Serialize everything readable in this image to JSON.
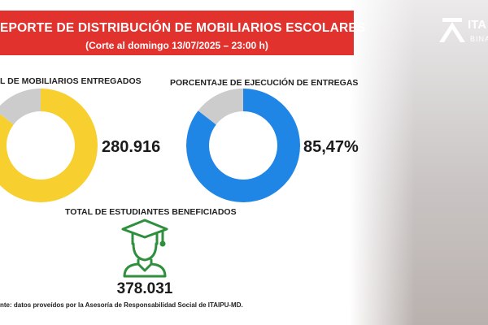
{
  "banner": {
    "title": "EPORTE DE DISTRIBUCIÓN DE MOBILIARIOS ESCOLARES",
    "subtitle": "(Corte al domingo 13/07/2025 – 23:00 h)",
    "color": "#e1322e"
  },
  "logo": {
    "text": "ITA",
    "sub": "BINA"
  },
  "chart_data": [
    {
      "type": "pie",
      "title": "L DE MOBILIARIOS ENTREGADOS",
      "value_label": "280.916",
      "slices": [
        {
          "label": "",
          "value": 85.47,
          "color": "#f7cf2e"
        },
        {
          "label": "",
          "value": 14.53,
          "color": "#cccccc"
        }
      ]
    },
    {
      "type": "pie",
      "title": "PORCENTAJE DE EJECUCIÓN DE ENTREGAS",
      "value_label": "85,47%",
      "slices": [
        {
          "label": "",
          "value": 85.47,
          "color": "#1f86e6"
        },
        {
          "label": "",
          "value": 14.53,
          "color": "#cccccc"
        }
      ]
    }
  ],
  "students": {
    "title": "TOTAL DE ESTUDIANTES BENEFICIADOS",
    "value": "378.031",
    "icon": "graduate-icon",
    "icon_color": "#2e8f3c"
  },
  "source": "nte: datos proveídos por la Asesoría de Responsabilidad Social de ITAIPU-MD."
}
